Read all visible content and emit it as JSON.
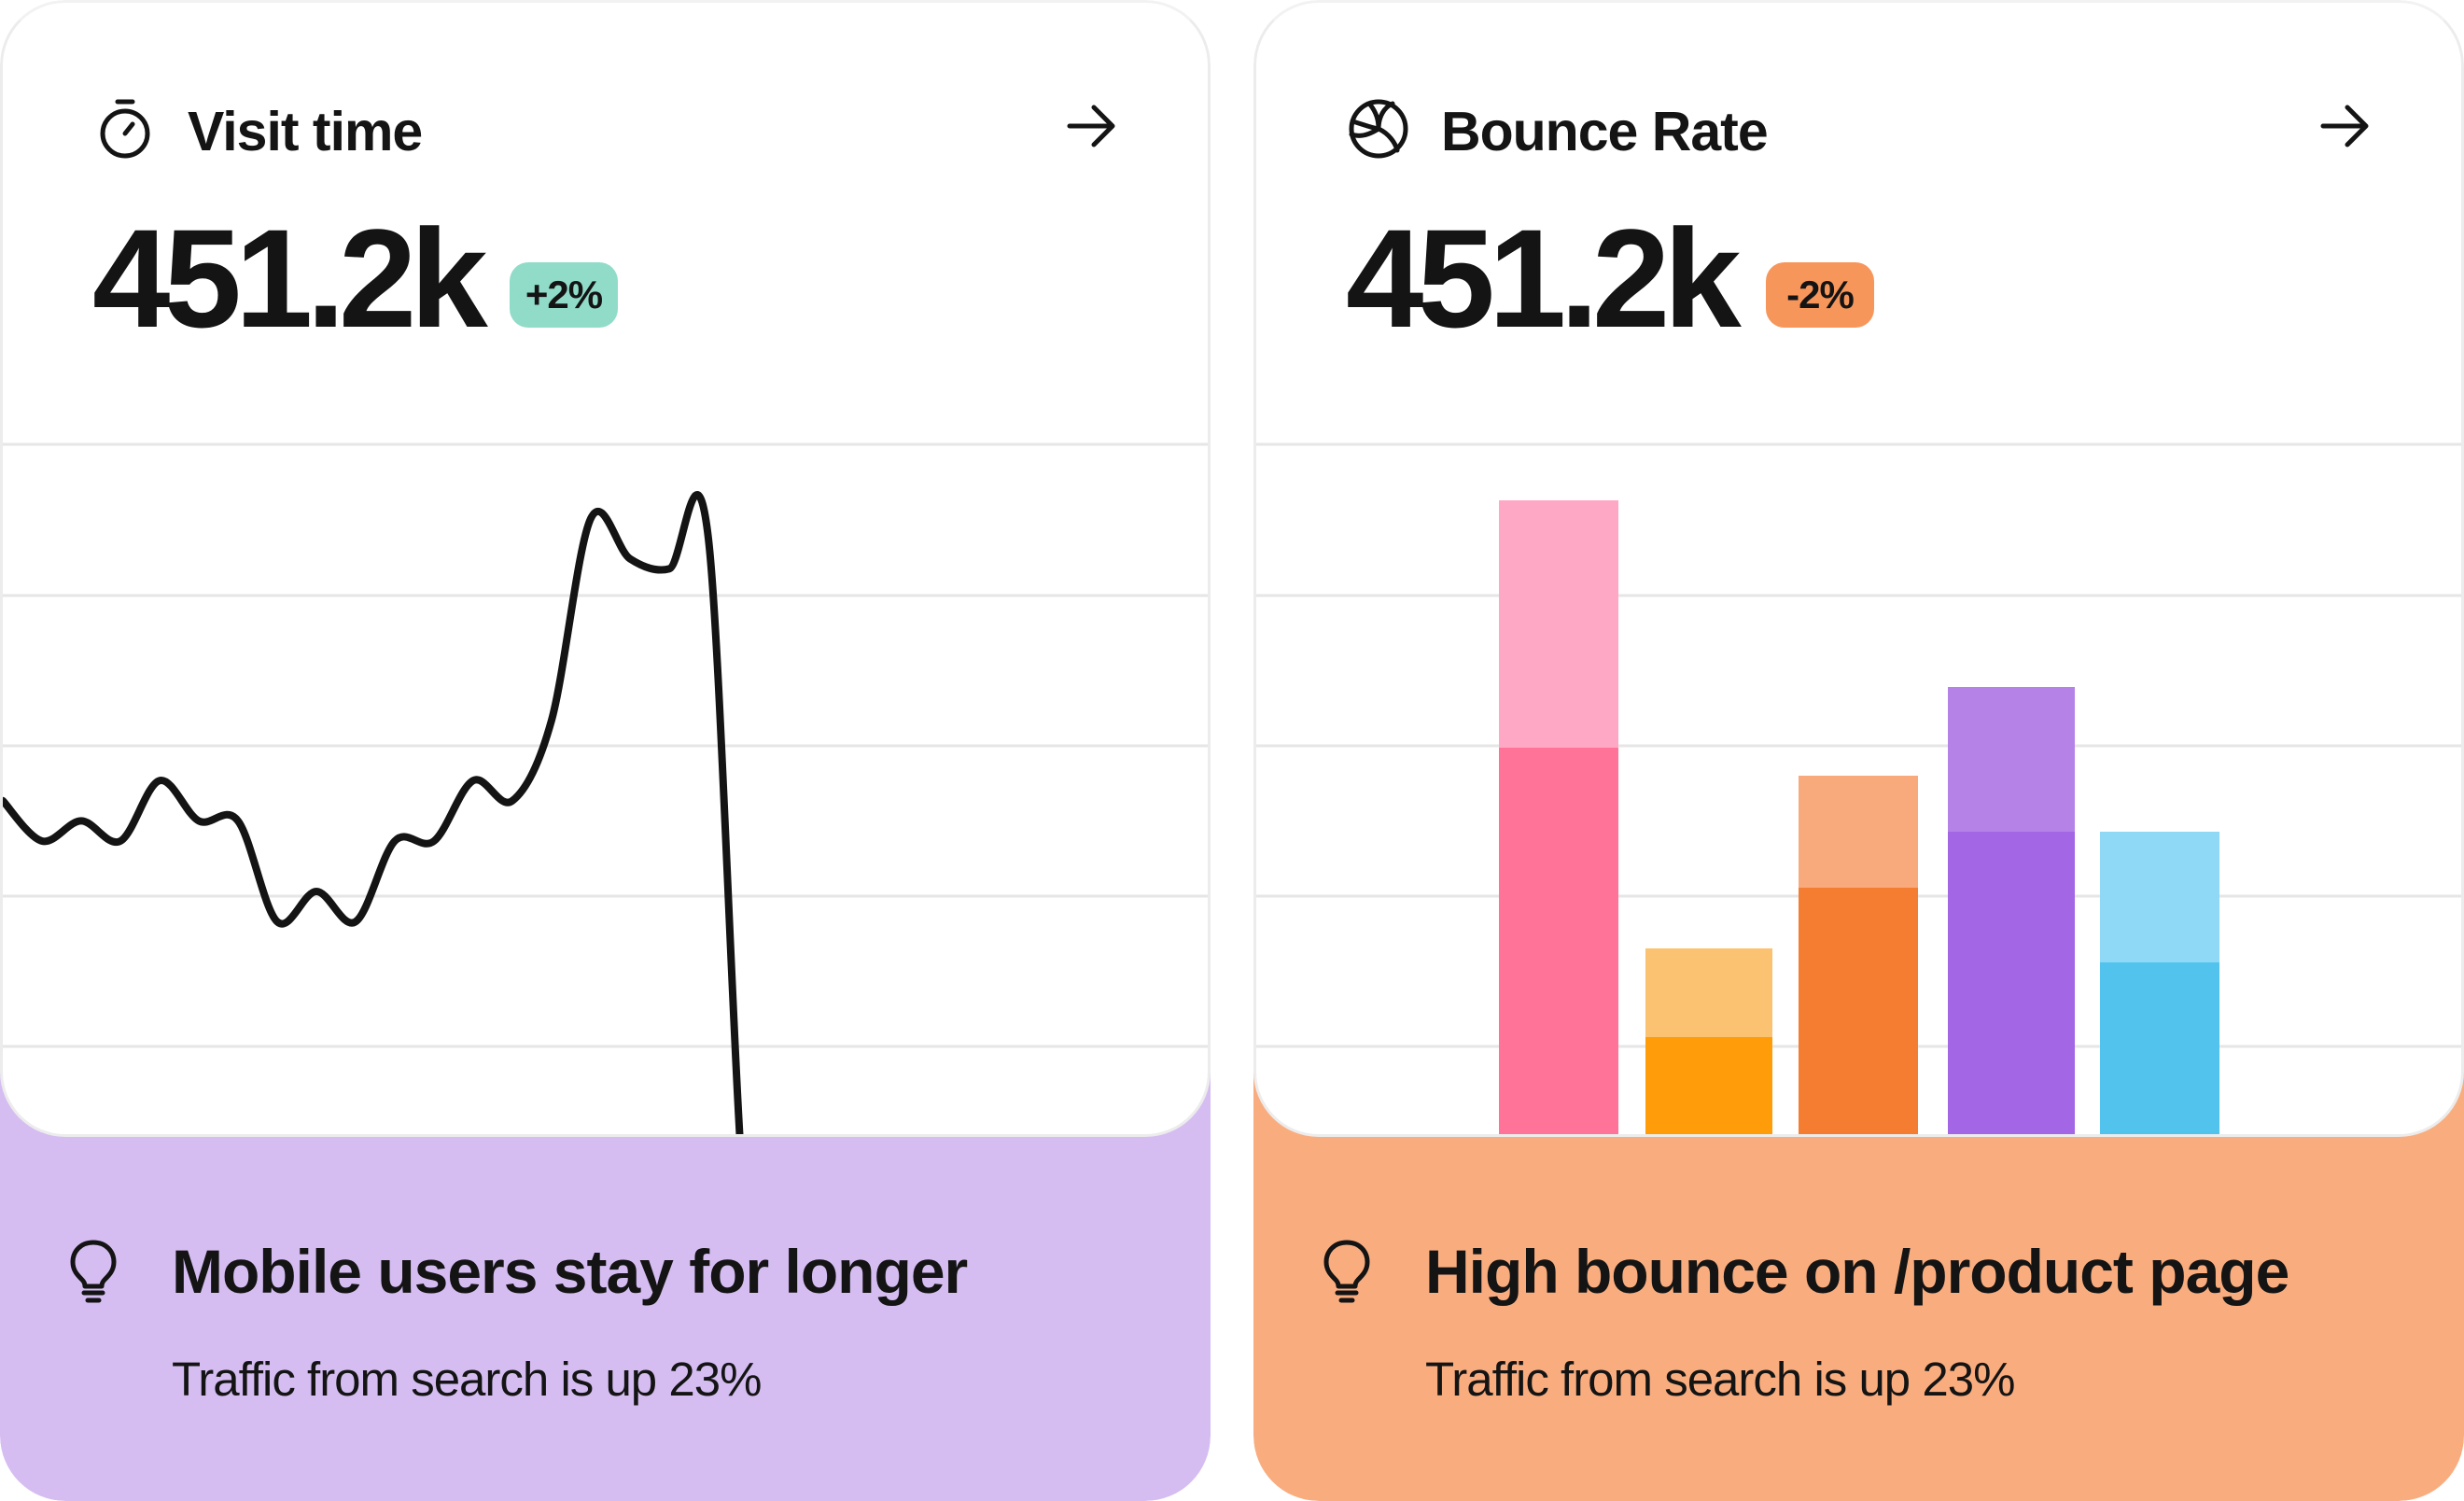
{
  "colors": {
    "insight_left_bg": "#d5bdf2",
    "insight_right_bg": "#f9ad7f",
    "badge_positive": "#90dcc8",
    "badge_negative": "#f7965b",
    "line_color": "#141414",
    "grid_color": "#e6e6e6"
  },
  "visit_card": {
    "icon": "stopwatch-icon",
    "title": "Visit time",
    "metric": "451.2k",
    "change": "+2%",
    "insight_icon": "lightbulb-icon",
    "insight_title": "Mobile users stay for longer",
    "insight_subtitle": "Traffic from search is up 23%"
  },
  "bounce_card": {
    "icon": "volleyball-icon",
    "title": "Bounce Rate",
    "metric": "451.2k",
    "change": "-2%",
    "insight_icon": "lightbulb-icon",
    "insight_title": "High bounce on /product page",
    "insight_subtitle": "Traffic from search is up 23%"
  },
  "chart_data": [
    {
      "type": "line",
      "grid": true,
      "x": [
        0,
        1,
        2,
        3,
        4,
        5,
        6,
        7,
        8,
        9,
        10,
        11,
        12,
        13,
        14,
        15,
        16,
        17,
        18,
        19,
        20,
        21,
        22,
        23,
        24,
        25,
        26
      ],
      "series": [
        {
          "values": [
            44,
            40,
            42,
            40,
            46,
            42,
            42,
            32,
            35,
            32,
            40,
            40,
            46,
            44,
            52,
            72,
            68,
            67,
            70,
            0,
            0,
            0,
            0,
            0,
            0,
            0,
            0
          ]
        }
      ]
    },
    {
      "type": "bar",
      "grid": true,
      "stacked": true,
      "categories": [
        "1",
        "2",
        "3",
        "4",
        "5"
      ],
      "series": [
        {
          "values": [
            420,
            110,
            270,
            330,
            190
          ],
          "colors": [
            "#ff7399",
            "#ff9c0a",
            "#f47d32",
            "#a366e4",
            "#52c3ed"
          ]
        },
        {
          "values": [
            265,
            95,
            120,
            155,
            140
          ],
          "colors": [
            "#ffa8c5",
            "#fbc272",
            "#f8aa7c",
            "#b583e8",
            "#8fd8f6"
          ]
        }
      ]
    }
  ]
}
